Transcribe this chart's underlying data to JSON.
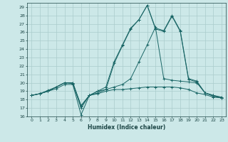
{
  "title": "",
  "xlabel": "Humidex (Indice chaleur)",
  "ylabel": "",
  "background_color": "#cce8e8",
  "grid_color": "#aacccc",
  "line_color": "#1a6666",
  "xlim": [
    -0.5,
    23.5
  ],
  "ylim": [
    16,
    29.5
  ],
  "xticks": [
    0,
    1,
    2,
    3,
    4,
    5,
    6,
    7,
    8,
    9,
    10,
    11,
    12,
    13,
    14,
    15,
    16,
    17,
    18,
    19,
    20,
    21,
    22,
    23
  ],
  "yticks": [
    16,
    17,
    18,
    19,
    20,
    21,
    22,
    23,
    24,
    25,
    26,
    27,
    28,
    29
  ],
  "series": [
    [
      18.5,
      18.7,
      19.0,
      19.3,
      19.8,
      19.8,
      16.2,
      18.5,
      18.7,
      19.0,
      19.2,
      19.2,
      19.3,
      19.4,
      19.5,
      19.5,
      19.5,
      19.5,
      19.4,
      19.2,
      18.8,
      18.6,
      18.3,
      18.2
    ],
    [
      18.5,
      18.7,
      19.0,
      19.5,
      20.0,
      20.0,
      17.2,
      18.5,
      19.0,
      19.2,
      19.5,
      19.8,
      20.5,
      22.5,
      24.5,
      26.6,
      20.5,
      20.3,
      20.2,
      20.1,
      20.0,
      18.8,
      18.5,
      18.3
    ],
    [
      18.5,
      18.7,
      19.0,
      19.5,
      20.0,
      20.0,
      17.3,
      18.5,
      19.0,
      19.5,
      22.5,
      24.5,
      26.5,
      27.5,
      29.2,
      26.5,
      26.2,
      28.0,
      26.2,
      20.5,
      20.2,
      18.8,
      18.5,
      18.2
    ],
    [
      18.5,
      18.7,
      19.1,
      19.5,
      20.0,
      19.9,
      17.0,
      18.5,
      18.8,
      19.2,
      22.3,
      24.4,
      26.4,
      27.5,
      29.2,
      26.4,
      26.1,
      27.9,
      26.1,
      20.4,
      20.1,
      18.8,
      18.4,
      18.2
    ]
  ]
}
